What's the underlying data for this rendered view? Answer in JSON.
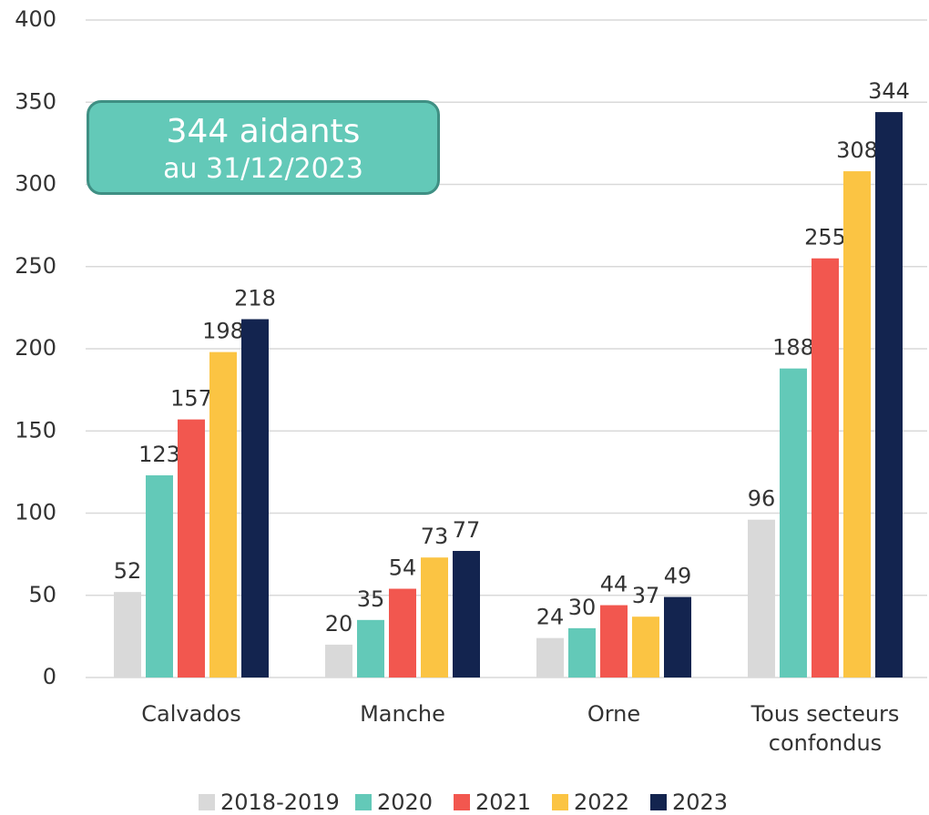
{
  "chart_data": {
    "type": "bar",
    "categories": [
      "Calvados",
      "Manche",
      "Orne",
      "Tous secteurs confondus"
    ],
    "series": [
      {
        "name": "2018-2019",
        "color": "#d9d9d9",
        "values": [
          52,
          20,
          24,
          96
        ]
      },
      {
        "name": "2020",
        "color": "#63c9b8",
        "values": [
          123,
          35,
          30,
          188
        ]
      },
      {
        "name": "2021",
        "color": "#f2574f",
        "values": [
          157,
          54,
          44,
          255
        ]
      },
      {
        "name": "2022",
        "color": "#fbc443",
        "values": [
          198,
          73,
          37,
          308
        ]
      },
      {
        "name": "2023",
        "color": "#13244f",
        "values": [
          218,
          77,
          49,
          344
        ]
      }
    ],
    "ylim": [
      0,
      400
    ],
    "yticks": [
      0,
      50,
      100,
      150,
      200,
      250,
      300,
      350,
      400
    ],
    "grid": true,
    "legend": "bottom",
    "annotation": [
      "344 aidants",
      "au 31/12/2023"
    ]
  }
}
